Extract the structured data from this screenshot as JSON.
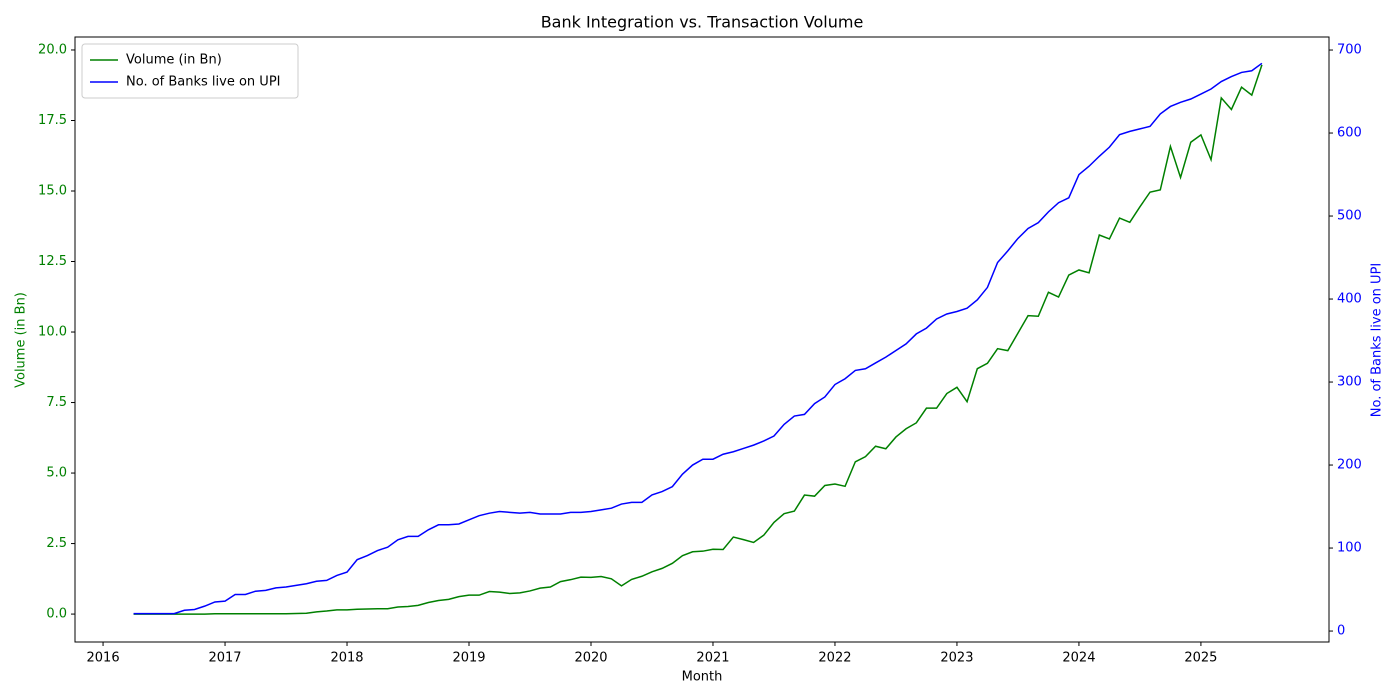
{
  "chart_data": {
    "type": "line",
    "title": "Bank Integration vs. Transaction Volume",
    "xlabel": "Month",
    "ylabel": "Volume (in Bn)",
    "y2label": "No. of Banks live on UPI",
    "x": [
      2016.25,
      2016.333,
      2016.417,
      2016.5,
      2016.583,
      2016.667,
      2016.75,
      2016.833,
      2016.917,
      2017.0,
      2017.083,
      2017.167,
      2017.25,
      2017.333,
      2017.417,
      2017.5,
      2017.583,
      2017.667,
      2017.75,
      2017.833,
      2017.917,
      2018.0,
      2018.083,
      2018.167,
      2018.25,
      2018.333,
      2018.417,
      2018.5,
      2018.583,
      2018.667,
      2018.75,
      2018.833,
      2018.917,
      2019.0,
      2019.083,
      2019.167,
      2019.25,
      2019.333,
      2019.417,
      2019.5,
      2019.583,
      2019.667,
      2019.75,
      2019.833,
      2019.917,
      2020.0,
      2020.083,
      2020.167,
      2020.25,
      2020.333,
      2020.417,
      2020.5,
      2020.583,
      2020.667,
      2020.75,
      2020.833,
      2020.917,
      2021.0,
      2021.083,
      2021.167,
      2021.25,
      2021.333,
      2021.417,
      2021.5,
      2021.583,
      2021.667,
      2021.75,
      2021.833,
      2021.917,
      2022.0,
      2022.083,
      2022.167,
      2022.25,
      2022.333,
      2022.417,
      2022.5,
      2022.583,
      2022.667,
      2022.75,
      2022.833,
      2022.917,
      2023.0,
      2023.083,
      2023.167,
      2023.25,
      2023.333,
      2023.417,
      2023.5,
      2023.583,
      2023.667,
      2023.75,
      2023.833,
      2023.917,
      2024.0,
      2024.083,
      2024.167,
      2024.25,
      2024.333,
      2024.417,
      2024.5,
      2024.583,
      2024.667,
      2024.75,
      2024.833,
      2024.917,
      2025.0,
      2025.083,
      2025.167,
      2025.25,
      2025.333,
      2025.417,
      2025.5
    ],
    "series": [
      {
        "name": "Volume (in Bn)",
        "color": "#008000",
        "axis": "y",
        "values": [
          0,
          0,
          0,
          0,
          0,
          0,
          0,
          0,
          0.01,
          0.01,
          0.01,
          0.01,
          0.01,
          0.01,
          0.01,
          0.01,
          0.02,
          0.03,
          0.08,
          0.11,
          0.15,
          0.15,
          0.17,
          0.18,
          0.19,
          0.19,
          0.25,
          0.27,
          0.31,
          0.41,
          0.48,
          0.52,
          0.62,
          0.67,
          0.67,
          0.8,
          0.78,
          0.73,
          0.75,
          0.82,
          0.92,
          0.96,
          1.15,
          1.22,
          1.31,
          1.3,
          1.33,
          1.25,
          1.0,
          1.23,
          1.34,
          1.5,
          1.62,
          1.8,
          2.07,
          2.21,
          2.23,
          2.3,
          2.29,
          2.73,
          2.64,
          2.54,
          2.8,
          3.25,
          3.56,
          3.65,
          4.22,
          4.18,
          4.56,
          4.61,
          4.53,
          5.4,
          5.58,
          5.95,
          5.86,
          6.28,
          6.57,
          6.78,
          7.3,
          7.3,
          7.82,
          8.04,
          7.53,
          8.7,
          8.89,
          9.41,
          9.34,
          9.96,
          10.58,
          10.56,
          11.41,
          11.24,
          12.02,
          12.2,
          12.1,
          13.44,
          13.3,
          14.04,
          13.89,
          14.44,
          14.96,
          15.04,
          16.58,
          15.48,
          16.73,
          16.99,
          16.11,
          18.3,
          17.89,
          18.68,
          18.4,
          19.47
        ]
      },
      {
        "name": "No. of Banks live on UPI",
        "color": "#0000ff",
        "axis": "y2",
        "values": [
          21,
          21,
          21,
          21,
          21,
          25,
          26,
          30,
          35,
          36,
          44,
          44,
          48,
          49,
          52,
          53,
          55,
          57,
          60,
          61,
          67,
          71,
          86,
          91,
          97,
          101,
          110,
          114,
          114,
          122,
          128,
          128,
          129,
          134,
          139,
          142,
          144,
          143,
          142,
          143,
          141,
          141,
          141,
          143,
          143,
          144,
          146,
          148,
          153,
          155,
          155,
          164,
          168,
          174,
          189,
          200,
          207,
          207,
          213,
          216,
          220,
          224,
          229,
          235,
          249,
          259,
          261,
          274,
          282,
          297,
          304,
          314,
          316,
          323,
          330,
          338,
          346,
          358,
          365,
          376,
          382,
          385,
          389,
          399,
          414,
          444,
          458,
          473,
          485,
          492,
          505,
          516,
          522,
          550,
          560,
          572,
          583,
          598,
          602,
          605,
          608,
          623,
          632,
          637,
          641,
          647,
          653,
          662,
          668,
          673,
          675,
          684
        ]
      }
    ],
    "xlim": [
      2015.77,
      2026.05
    ],
    "xticks": [
      2016,
      2017,
      2018,
      2019,
      2020,
      2021,
      2022,
      2023,
      2024,
      2025
    ],
    "ylim": [
      -0.99,
      20.46
    ],
    "yticks": [
      {
        "value": 0,
        "label": "0.0"
      },
      2.5,
      {
        "value": 5,
        "label": "5.0"
      },
      7.5,
      {
        "value": 10,
        "label": "10.0"
      },
      12.5,
      {
        "value": 15,
        "label": "15.0"
      },
      17.5,
      {
        "value": 20,
        "label": "20.0"
      }
    ],
    "y2lim": [
      -13.2,
      715.7
    ],
    "y2ticks": [
      0,
      100,
      200,
      300,
      400,
      500,
      600,
      700
    ],
    "legend": "upper left",
    "grid": false
  }
}
